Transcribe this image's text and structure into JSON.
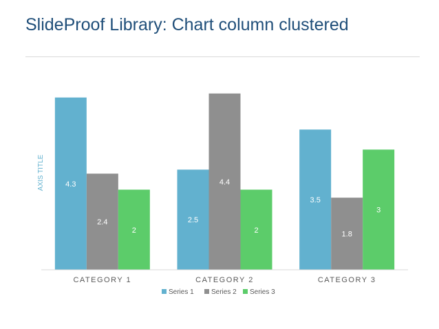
{
  "slide": {
    "title": "SlideProof Library: Chart column clustered"
  },
  "chart_data": {
    "type": "bar",
    "title": "",
    "xlabel": "",
    "ylabel": "AXIS TITLE",
    "categories": [
      "CATEGORY 1",
      "CATEGORY 2",
      "CATEGORY 3"
    ],
    "series": [
      {
        "name": "Series 1",
        "values": [
          4.3,
          2.5,
          3.5
        ],
        "color": "#62b1cf"
      },
      {
        "name": "Series 2",
        "values": [
          2.4,
          4.4,
          1.8
        ],
        "color": "#8f8f8f"
      },
      {
        "name": "Series 3",
        "values": [
          2,
          2,
          3
        ],
        "color": "#5ccc6a"
      }
    ],
    "ylim": [
      0,
      4.5
    ],
    "grid": false,
    "legend_position": "bottom",
    "data_labels": true,
    "axis_title_color": "#62b1cf",
    "text_color": "#595959",
    "label_color": "#ffffff"
  }
}
